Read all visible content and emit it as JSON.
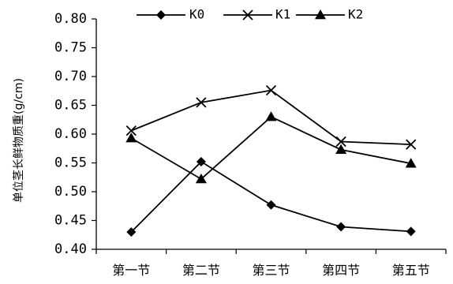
{
  "chart_data": {
    "type": "line",
    "title": "",
    "xlabel": "",
    "ylabel": "单位茎长鲜物质重(g/cm)",
    "categories": [
      "第一节",
      "第二节",
      "第三节",
      "第四节",
      "第五节"
    ],
    "ylim": [
      0.4,
      0.8
    ],
    "yticks": [
      "0.40",
      "0.45",
      "0.50",
      "0.55",
      "0.60",
      "0.65",
      "0.70",
      "0.75",
      "0.80"
    ],
    "grid": false,
    "legend": "top",
    "series": [
      {
        "name": "K0",
        "marker": "diamond",
        "color": "#000000",
        "values": [
          0.43,
          0.552,
          0.477,
          0.439,
          0.431
        ]
      },
      {
        "name": "K1",
        "marker": "x",
        "color": "#000000",
        "values": [
          0.606,
          0.655,
          0.676,
          0.587,
          0.582
        ]
      },
      {
        "name": "K2",
        "marker": "triangle",
        "color": "#000000",
        "values": [
          0.593,
          0.522,
          0.63,
          0.573,
          0.549
        ]
      }
    ]
  }
}
